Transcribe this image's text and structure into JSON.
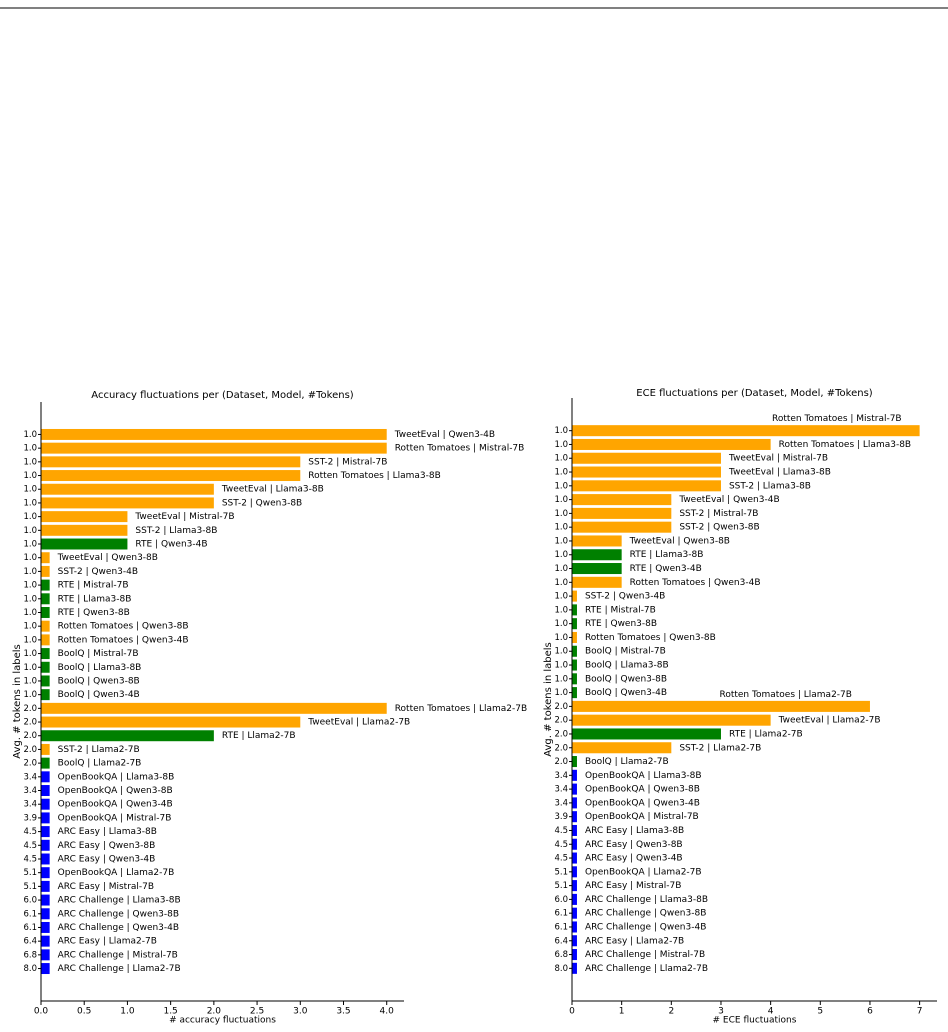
{
  "chart_data": [
    {
      "type": "barh",
      "title": "Accuracy fluctuations per (Dataset, Model, #Tokens)",
      "xlabel": "# accuracy fluctuations",
      "ylabel": "Avg. # tokens in labels",
      "categories": [
        "1.0",
        "1.0",
        "1.0",
        "1.0",
        "1.0",
        "1.0",
        "1.0",
        "1.0",
        "1.0",
        "1.0",
        "1.0",
        "1.0",
        "1.0",
        "1.0",
        "1.0",
        "1.0",
        "1.0",
        "1.0",
        "1.0",
        "1.0",
        "2.0",
        "2.0",
        "2.0",
        "2.0",
        "2.0",
        "3.4",
        "3.4",
        "3.4",
        "3.9",
        "4.5",
        "4.5",
        "4.5",
        "5.1",
        "5.1",
        "6.0",
        "6.1",
        "6.1",
        "6.4",
        "6.8",
        "8.0"
      ],
      "bar_labels": [
        "TweetEval | Qwen3-4B",
        "Rotten Tomatoes | Mistral-7B",
        "SST-2 | Mistral-7B",
        "Rotten Tomatoes | Llama3-8B",
        "TweetEval | Llama3-8B",
        "SST-2 | Qwen3-8B",
        "TweetEval | Mistral-7B",
        "SST-2 | Llama3-8B",
        "RTE | Qwen3-4B",
        "TweetEval | Qwen3-8B",
        "SST-2 | Qwen3-4B",
        "RTE | Mistral-7B",
        "RTE | Llama3-8B",
        "RTE | Qwen3-8B",
        "Rotten Tomatoes | Qwen3-8B",
        "Rotten Tomatoes | Qwen3-4B",
        "BoolQ | Mistral-7B",
        "BoolQ | Llama3-8B",
        "BoolQ | Qwen3-8B",
        "BoolQ | Qwen3-4B",
        "Rotten Tomatoes | Llama2-7B",
        "TweetEval | Llama2-7B",
        "RTE | Llama2-7B",
        "SST-2 | Llama2-7B",
        "BoolQ | Llama2-7B",
        "OpenBookQA | Llama3-8B",
        "OpenBookQA | Qwen3-8B",
        "OpenBookQA | Qwen3-4B",
        "OpenBookQA | Mistral-7B",
        "ARC Easy | Llama3-8B",
        "ARC Easy | Qwen3-8B",
        "ARC Easy | Qwen3-4B",
        "OpenBookQA | Llama2-7B",
        "ARC Easy | Mistral-7B",
        "ARC Challenge | Llama3-8B",
        "ARC Challenge | Qwen3-8B",
        "ARC Challenge | Qwen3-4B",
        "ARC Easy | Llama2-7B",
        "ARC Challenge | Mistral-7B",
        "ARC Challenge | Llama2-7B"
      ],
      "values": [
        4,
        4,
        3,
        3,
        2,
        2,
        1,
        1,
        1,
        0.1,
        0.1,
        0.1,
        0.1,
        0.1,
        0.1,
        0.1,
        0.1,
        0.1,
        0.1,
        0.1,
        4,
        3,
        2,
        0.1,
        0.1,
        0.1,
        0.1,
        0.1,
        0.1,
        0.1,
        0.1,
        0.1,
        0.1,
        0.1,
        0.1,
        0.1,
        0.1,
        0.1,
        0.1,
        0.1
      ],
      "colors": [
        "orange",
        "orange",
        "orange",
        "orange",
        "orange",
        "orange",
        "orange",
        "orange",
        "green",
        "orange",
        "orange",
        "green",
        "green",
        "green",
        "orange",
        "orange",
        "green",
        "green",
        "green",
        "green",
        "orange",
        "orange",
        "green",
        "orange",
        "green",
        "blue",
        "blue",
        "blue",
        "blue",
        "blue",
        "blue",
        "blue",
        "blue",
        "blue",
        "blue",
        "blue",
        "blue",
        "blue",
        "blue",
        "blue"
      ],
      "xlim": [
        0,
        4.2
      ],
      "xticks": [
        {
          "value": 0,
          "label": "0.0"
        },
        {
          "value": 0.5,
          "label": "0.5"
        },
        {
          "value": 1,
          "label": "1.0"
        },
        {
          "value": 1.5,
          "label": "1.5"
        },
        {
          "value": 2,
          "label": "2.0"
        },
        {
          "value": 2.5,
          "label": "2.5"
        },
        {
          "value": 3,
          "label": "3.0"
        },
        {
          "value": 3.5,
          "label": "3.5"
        },
        {
          "value": 4,
          "label": "4.0"
        }
      ]
    },
    {
      "type": "barh",
      "title": "ECE fluctuations per (Dataset, Model, #Tokens)",
      "xlabel": "# ECE fluctuations",
      "ylabel": "Avg. # tokens in labels",
      "categories": [
        "1.0",
        "1.0",
        "1.0",
        "1.0",
        "1.0",
        "1.0",
        "1.0",
        "1.0",
        "1.0",
        "1.0",
        "1.0",
        "1.0",
        "1.0",
        "1.0",
        "1.0",
        "1.0",
        "1.0",
        "1.0",
        "1.0",
        "1.0",
        "2.0",
        "2.0",
        "2.0",
        "2.0",
        "2.0",
        "3.4",
        "3.4",
        "3.4",
        "3.9",
        "4.5",
        "4.5",
        "4.5",
        "5.1",
        "5.1",
        "6.0",
        "6.1",
        "6.1",
        "6.4",
        "6.8",
        "8.0"
      ],
      "bar_labels": [
        "Rotten Tomatoes | Mistral-7B",
        "Rotten Tomatoes | Llama3-8B",
        "TweetEval | Mistral-7B",
        "TweetEval | Llama3-8B",
        "SST-2 | Llama3-8B",
        "TweetEval | Qwen3-4B",
        "SST-2 | Mistral-7B",
        "SST-2 | Qwen3-8B",
        "TweetEval | Qwen3-8B",
        "RTE | Llama3-8B",
        "RTE | Qwen3-4B",
        "Rotten Tomatoes | Qwen3-4B",
        "SST-2 | Qwen3-4B",
        "RTE | Mistral-7B",
        "RTE | Qwen3-8B",
        "Rotten Tomatoes | Qwen3-8B",
        "BoolQ | Mistral-7B",
        "BoolQ | Llama3-8B",
        "BoolQ | Qwen3-8B",
        "BoolQ | Qwen3-4B",
        "Rotten Tomatoes | Llama2-7B",
        "TweetEval | Llama2-7B",
        "RTE | Llama2-7B",
        "SST-2 | Llama2-7B",
        "BoolQ | Llama2-7B",
        "OpenBookQA | Llama3-8B",
        "OpenBookQA | Qwen3-8B",
        "OpenBookQA | Qwen3-4B",
        "OpenBookQA | Mistral-7B",
        "ARC Easy | Llama3-8B",
        "ARC Easy | Qwen3-8B",
        "ARC Easy | Qwen3-4B",
        "OpenBookQA | Llama2-7B",
        "ARC Easy | Mistral-7B",
        "ARC Challenge | Llama3-8B",
        "ARC Challenge | Qwen3-8B",
        "ARC Challenge | Qwen3-4B",
        "ARC Easy | Llama2-7B",
        "ARC Challenge | Mistral-7B",
        "ARC Challenge | Llama2-7B"
      ],
      "values": [
        7,
        4,
        3,
        3,
        3,
        2,
        2,
        2,
        1,
        1,
        1,
        1,
        0.1,
        0.1,
        0.1,
        0.1,
        0.1,
        0.1,
        0.1,
        0.1,
        6,
        4,
        3,
        2,
        0.1,
        0.1,
        0.1,
        0.1,
        0.1,
        0.1,
        0.1,
        0.1,
        0.1,
        0.1,
        0.1,
        0.1,
        0.1,
        0.1,
        0.1,
        0.1
      ],
      "colors": [
        "orange",
        "orange",
        "orange",
        "orange",
        "orange",
        "orange",
        "orange",
        "orange",
        "orange",
        "green",
        "green",
        "orange",
        "orange",
        "green",
        "green",
        "orange",
        "green",
        "green",
        "green",
        "green",
        "orange",
        "orange",
        "green",
        "orange",
        "green",
        "blue",
        "blue",
        "blue",
        "blue",
        "blue",
        "blue",
        "blue",
        "blue",
        "blue",
        "blue",
        "blue",
        "blue",
        "blue",
        "blue",
        "blue"
      ],
      "xlim": [
        0,
        7.35
      ],
      "xticks": [
        0,
        1,
        2,
        3,
        4,
        5,
        6,
        7
      ]
    }
  ]
}
